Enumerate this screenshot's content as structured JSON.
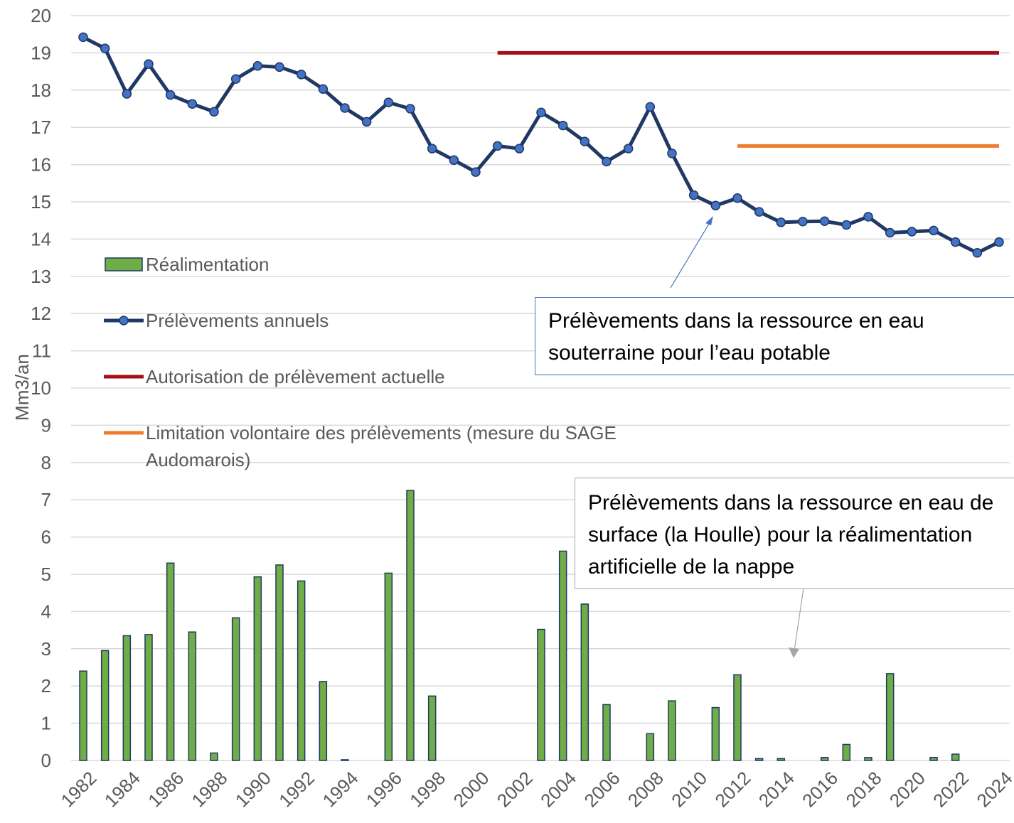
{
  "chart_data": {
    "type": "bar",
    "y_label": "Mm3/an",
    "categories": [
      "1982",
      null,
      "1984",
      null,
      "1986",
      null,
      "1988",
      null,
      "1990",
      null,
      "1992",
      null,
      "1994",
      null,
      "1996",
      null,
      "1998",
      null,
      "2000",
      null,
      "2002",
      null,
      "2004",
      null,
      "2006",
      null,
      "2008",
      null,
      "2010",
      null,
      "2012",
      null,
      "2014",
      null,
      "2016",
      null,
      "2018",
      null,
      "2020",
      null,
      "2022",
      null,
      "2024"
    ],
    "series": [
      {
        "name": "Réalimentation",
        "type": "bar",
        "color": "#70ad47",
        "values": [
          2.4,
          2.95,
          3.35,
          3.38,
          5.3,
          3.45,
          0.2,
          3.83,
          4.93,
          5.25,
          4.82,
          2.12,
          0.02,
          0,
          5.03,
          7.25,
          1.73,
          0,
          0,
          0,
          0,
          3.52,
          5.62,
          4.2,
          1.5,
          0,
          0.72,
          1.6,
          0,
          1.42,
          2.3,
          0.05,
          0.05,
          0,
          0.08,
          0.43,
          0.08,
          2.33,
          0,
          0.08,
          0.17,
          0,
          0
        ]
      },
      {
        "name": "Prélèvements annuels",
        "type": "line",
        "markers": true,
        "color": "#1f3864",
        "values": [
          19.42,
          19.12,
          17.9,
          18.7,
          17.87,
          17.63,
          17.42,
          18.3,
          18.65,
          18.62,
          18.42,
          18.03,
          17.52,
          17.15,
          17.67,
          17.5,
          16.43,
          16.12,
          15.8,
          16.5,
          16.43,
          17.4,
          17.05,
          16.62,
          16.08,
          16.43,
          17.55,
          16.3,
          15.18,
          14.9,
          15.1,
          14.73,
          14.45,
          14.47,
          14.48,
          14.38,
          14.6,
          14.17,
          14.2,
          14.23,
          13.92,
          13.63,
          13.92
        ]
      },
      {
        "name": "Autorisation de prélèvement actuelle",
        "type": "line",
        "color": "#a50f15",
        "values": [
          null,
          null,
          null,
          null,
          null,
          null,
          null,
          null,
          null,
          null,
          null,
          null,
          null,
          null,
          null,
          null,
          null,
          null,
          null,
          19,
          19,
          19,
          19,
          19,
          19,
          19,
          19,
          19,
          19,
          19,
          19,
          19,
          19,
          19,
          19,
          19,
          19,
          19,
          19,
          19,
          19,
          19,
          19
        ]
      },
      {
        "name": "Limitation volontaire des prélèvements (mesure du SAGE Audomarois)",
        "type": "line",
        "color": "#ed7d31",
        "values": [
          null,
          null,
          null,
          null,
          null,
          null,
          null,
          null,
          null,
          null,
          null,
          null,
          null,
          null,
          null,
          null,
          null,
          null,
          null,
          null,
          null,
          null,
          null,
          null,
          null,
          null,
          null,
          null,
          null,
          null,
          16.5,
          16.5,
          16.5,
          16.5,
          16.5,
          16.5,
          16.5,
          16.5,
          16.5,
          16.5,
          16.5,
          16.5,
          16.5
        ]
      }
    ],
    "ylim": [
      0,
      20
    ],
    "yticks": [
      0,
      1,
      2,
      3,
      4,
      5,
      6,
      7,
      8,
      9,
      10,
      11,
      12,
      13,
      14,
      15,
      16,
      17,
      18,
      19,
      20
    ],
    "grid": true,
    "legend": "left",
    "annotations": [
      {
        "text": "Prélèvements dans la ressource en eau souterraine pour l’eau potable"
      },
      {
        "text": "Prélèvements dans la ressource en eau de surface (la Houlle) pour la réalimentation artificielle de la nappe"
      }
    ]
  }
}
